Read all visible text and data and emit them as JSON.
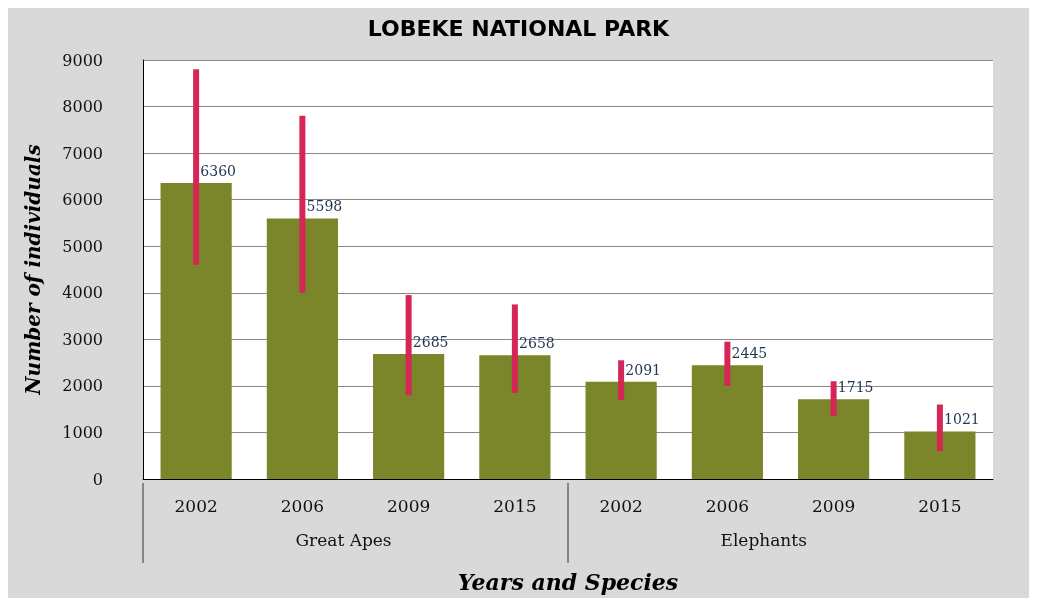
{
  "chart_data": {
    "type": "bar",
    "title": "LOBEKE NATIONAL PARK",
    "xlabel": "Years and Species",
    "ylabel": "Number of individuals",
    "categories": [
      "2002",
      "2006",
      "2009",
      "2015",
      "2002",
      "2006",
      "2009",
      "2015"
    ],
    "annotations": [
      "Great Apes",
      "Elephants"
    ],
    "series": [
      {
        "color": "#7b852a",
        "values": [
          6360,
          5598,
          2685,
          2658,
          2091,
          2445,
          1715,
          1021
        ],
        "errors": [
          [
            4600,
            8800
          ],
          [
            4000,
            7800
          ],
          [
            1800,
            3950
          ],
          [
            1850,
            3750
          ],
          [
            1700,
            2550
          ],
          [
            2000,
            2950
          ],
          [
            1350,
            2100
          ],
          [
            600,
            1600
          ]
        ]
      }
    ],
    "ylim": [
      0,
      9000
    ],
    "yticks": [
      0,
      1000,
      2000,
      3000,
      4000,
      5000,
      6000,
      7000,
      8000,
      9000
    ],
    "grid": "y",
    "data_labels": true
  }
}
